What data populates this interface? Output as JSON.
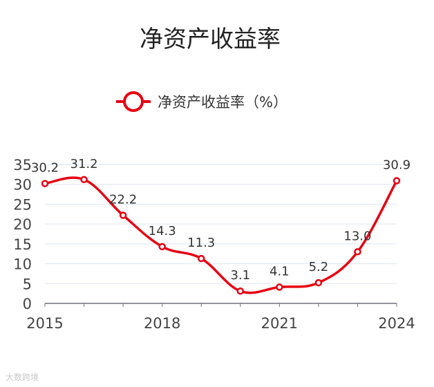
{
  "chart_data": {
    "type": "line",
    "title": "净资产收益率",
    "series": [
      {
        "name": "净资产收益率（%）",
        "color": "#e60012",
        "x": [
          2015,
          2016,
          2017,
          2018,
          2019,
          2020,
          2021,
          2022,
          2023,
          2024
        ],
        "values": [
          30.2,
          31.2,
          22.2,
          14.3,
          11.3,
          3.1,
          4.1,
          5.2,
          13.0,
          30.9
        ],
        "labels": [
          "30.2",
          "31.2",
          "22.2",
          "14.3",
          "11.3",
          "3.1",
          "4.1",
          "5.2",
          "13.0",
          "30.9"
        ]
      }
    ],
    "x_ticks": [
      "2015",
      "2018",
      "2021",
      "2024"
    ],
    "y_ticks": [
      "0",
      "5",
      "10",
      "15",
      "20",
      "25",
      "30",
      "35"
    ],
    "ylim": [
      0,
      35
    ],
    "xlim": [
      2015,
      2024
    ],
    "grid": true,
    "legend_position": "top-center"
  },
  "watermark": "大数跨境"
}
